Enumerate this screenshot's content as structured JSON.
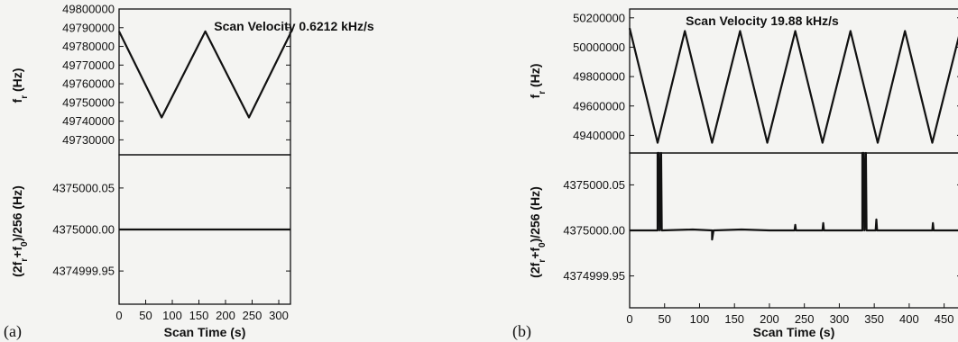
{
  "panels": [
    {
      "id": "a",
      "panel_label": "(a)",
      "title": "Scan Velocity 0.6212 kHz/s",
      "xlabel": "Scan Time (s)",
      "top_ylabel": "f_r (Hz)",
      "bottom_ylabel": "(2f_r+f_0)/256 (Hz)"
    },
    {
      "id": "b",
      "panel_label": "(b)",
      "title": "Scan Velocity 19.88 kHz/s",
      "xlabel": "Scan Time (s)",
      "top_ylabel": "f_r (Hz)",
      "bottom_ylabel": "(2f_r+f_0)/256 (Hz)"
    }
  ],
  "chart_data": [
    {
      "panel": "a",
      "subplot": "top",
      "type": "line",
      "title": "Scan Velocity 0.6212 kHz/s",
      "xlabel": "",
      "ylabel": "f_r (Hz)",
      "xlim": [
        0,
        322
      ],
      "ylim": [
        49722000,
        49800000
      ],
      "yticks": [
        49730000,
        49740000,
        49750000,
        49760000,
        49770000,
        49780000,
        49790000,
        49800000
      ],
      "ytick_labels": [
        "49730000",
        "49740000",
        "49750000",
        "49760000",
        "49770000",
        "49780000",
        "49790000",
        "49800000"
      ],
      "series": [
        {
          "x": [
            0,
            80,
            162,
            244,
            322
          ],
          "y": [
            49788000,
            49742000,
            49788000,
            49742000,
            49787000
          ]
        }
      ]
    },
    {
      "panel": "a",
      "subplot": "bottom",
      "type": "line",
      "title": "",
      "xlabel": "Scan Time (s)",
      "ylabel": "(2f_r+f_0)/256 (Hz)",
      "xlim": [
        0,
        322
      ],
      "ylim": [
        4374999.91,
        4375000.09
      ],
      "xticks": [
        0,
        50,
        100,
        150,
        200,
        250,
        300
      ],
      "xtick_labels": [
        "0",
        "50",
        "100",
        "150",
        "200",
        "250",
        "300"
      ],
      "yticks": [
        4374999.95,
        4375000.0,
        4375000.05
      ],
      "ytick_labels": [
        "4374999.95",
        "4375000.00",
        "4375000.05"
      ],
      "series": [
        {
          "x": [
            0,
            322
          ],
          "y": [
            4375000.0,
            4375000.0
          ]
        }
      ]
    },
    {
      "panel": "b",
      "subplot": "top",
      "type": "line",
      "title": "Scan Velocity 19.88 kHz/s",
      "xlabel": "",
      "ylabel": "f_r (Hz)",
      "xlim": [
        0,
        475
      ],
      "ylim": [
        49280000,
        50260000
      ],
      "yticks": [
        49400000,
        49600000,
        49800000,
        50000000,
        50200000
      ],
      "ytick_labels": [
        "49400000",
        "49600000",
        "49800000",
        "50000000",
        "50200000"
      ],
      "series": [
        {
          "x": [
            0,
            40,
            79,
            118,
            158,
            197,
            237,
            276,
            316,
            355,
            394,
            433,
            473
          ],
          "y": [
            50130000,
            49350000,
            50110000,
            49350000,
            50110000,
            49350000,
            50110000,
            49350000,
            50110000,
            49350000,
            50110000,
            49350000,
            50110000
          ]
        }
      ]
    },
    {
      "panel": "b",
      "subplot": "bottom",
      "type": "line",
      "title": "",
      "xlabel": "Scan Time (s)",
      "ylabel": "(2f_r+f_0)/256 (Hz)",
      "xlim": [
        0,
        475
      ],
      "ylim": [
        4374999.915,
        4375000.085
      ],
      "xticks": [
        0,
        50,
        100,
        150,
        200,
        250,
        300,
        350,
        400,
        450
      ],
      "xtick_labels": [
        "0",
        "50",
        "100",
        "150",
        "200",
        "250",
        "300",
        "350",
        "400",
        "450"
      ],
      "yticks": [
        4374999.95,
        4375000.0,
        4375000.05
      ],
      "ytick_labels": [
        "4374999.95",
        "4375000.00",
        "4375000.05"
      ],
      "series": [
        {
          "x": [
            0,
            40,
            40,
            42,
            43,
            45,
            46,
            90,
            118,
            118,
            120,
            160,
            200,
            236,
            237,
            238,
            276,
            277,
            278,
            333,
            333,
            335,
            336,
            338,
            339,
            352,
            353,
            354,
            433,
            434,
            435,
            475
          ],
          "y": [
            4375000.0,
            4375000.0,
            4375000.085,
            4375000.085,
            4375000.0,
            4375000.085,
            4375000.0,
            4375000.001,
            4375000.0,
            4374999.99,
            4375000.0,
            4375000.001,
            4375000.0,
            4375000.0,
            4375000.006,
            4375000.0,
            4375000.0,
            4375000.008,
            4375000.0,
            4375000.0,
            4375000.085,
            4375000.085,
            4375000.0,
            4375000.085,
            4375000.0,
            4375000.0,
            4375000.012,
            4375000.0,
            4375000.0,
            4375000.008,
            4375000.0,
            4375000.0
          ]
        }
      ]
    }
  ]
}
